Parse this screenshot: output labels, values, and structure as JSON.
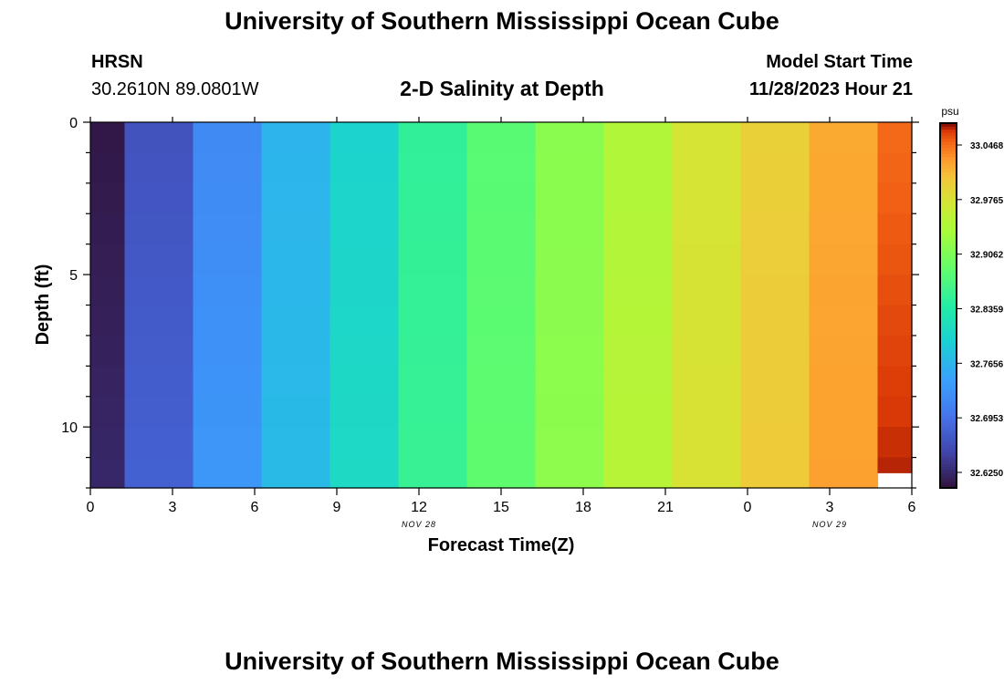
{
  "header": {
    "title": "University of Southern Mississippi Ocean Cube",
    "station": "HRSN",
    "location": "30.2610N  89.0801W",
    "plot_title": "2-D Salinity at Depth",
    "model_start_label": "Model Start Time",
    "model_start_value": "11/28/2023 Hour 21",
    "footer_title": "University of Southern Mississippi Ocean Cube"
  },
  "chart_data": {
    "type": "heatmap",
    "title": "2-D Salinity at Depth",
    "xlabel": "Forecast Time(Z)",
    "ylabel": "Depth (ft)",
    "xlim": [
      0,
      30
    ],
    "ylim": [
      12,
      0
    ],
    "x_ticks": [
      "0",
      "3",
      "6",
      "9",
      "12",
      "15",
      "18",
      "21",
      "0",
      "3",
      "6"
    ],
    "y_ticks": [
      "0",
      "5",
      "10"
    ],
    "date_labels": [
      {
        "text": "NOV 28",
        "at_forecast_hour": 12
      },
      {
        "text": "NOV 29",
        "at_forecast_hour": 27
      }
    ],
    "columns": [
      {
        "start": 0,
        "end": 1.25,
        "surface": 32.61,
        "bottom": 32.625
      },
      {
        "start": 1.25,
        "end": 3.75,
        "surface": 32.665,
        "bottom": 32.68
      },
      {
        "start": 3.75,
        "end": 6.25,
        "surface": 32.72,
        "bottom": 32.735
      },
      {
        "start": 6.25,
        "end": 8.75,
        "surface": 32.765,
        "bottom": 32.772
      },
      {
        "start": 8.75,
        "end": 11.25,
        "surface": 32.8,
        "bottom": 32.81
      },
      {
        "start": 11.25,
        "end": 13.75,
        "surface": 32.85,
        "bottom": 32.855
      },
      {
        "start": 13.75,
        "end": 16.25,
        "surface": 32.88,
        "bottom": 32.885
      },
      {
        "start": 16.25,
        "end": 18.75,
        "surface": 32.915,
        "bottom": 32.918
      },
      {
        "start": 18.75,
        "end": 21.25,
        "surface": 32.945,
        "bottom": 32.95
      },
      {
        "start": 21.25,
        "end": 23.75,
        "surface": 32.975,
        "bottom": 32.978
      },
      {
        "start": 23.75,
        "end": 26.25,
        "surface": 32.995,
        "bottom": 33.0
      },
      {
        "start": 26.25,
        "end": 28.75,
        "surface": 33.02,
        "bottom": 33.025
      },
      {
        "start": 28.75,
        "end": 30,
        "surface": 33.048,
        "bottom": 33.07,
        "missing_below_depth": 11.5
      }
    ],
    "colorbar": {
      "unit": "psu",
      "range": [
        32.605,
        33.075
      ],
      "ticks": [
        "32.6250",
        "32.6953",
        "32.7656",
        "32.8359",
        "32.9062",
        "32.9765",
        "33.0468"
      ],
      "tick_values": [
        32.625,
        32.6953,
        32.7656,
        32.8359,
        32.9062,
        32.9765,
        33.0468
      ]
    }
  }
}
